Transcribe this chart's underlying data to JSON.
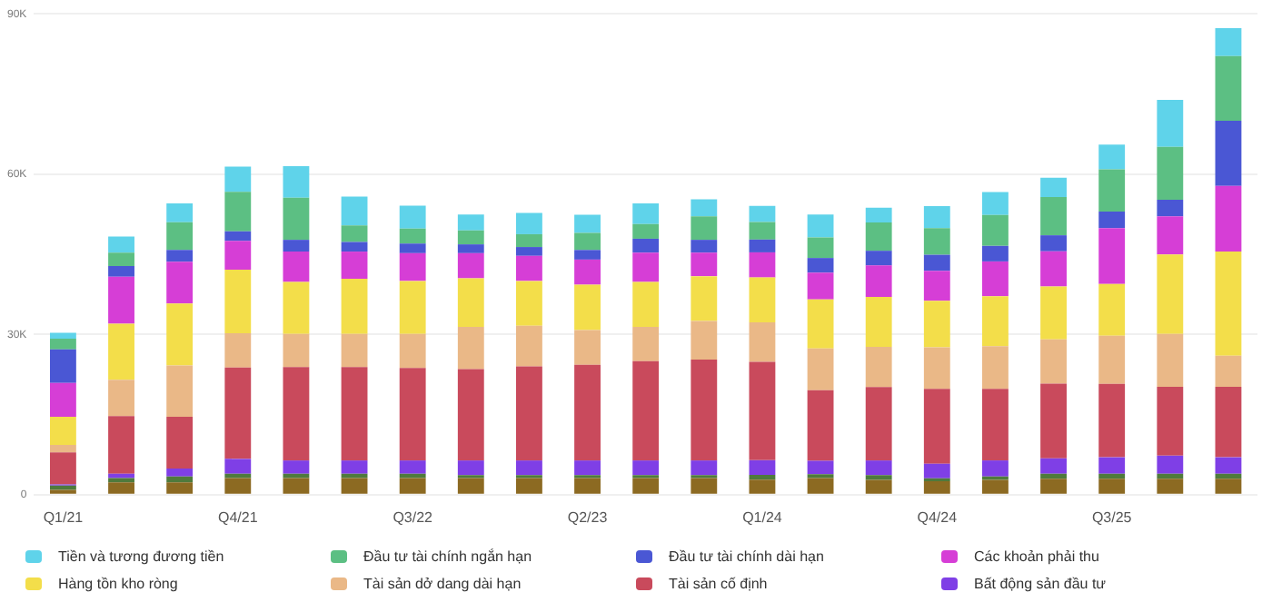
{
  "chart_data": {
    "type": "bar",
    "stacked": true,
    "categories": [
      "Q1/21",
      null,
      null,
      "Q4/21",
      null,
      null,
      "Q3/22",
      null,
      null,
      "Q2/23",
      null,
      null,
      "Q1/24",
      null,
      null,
      "Q4/24",
      null,
      null,
      "Q3/25",
      null,
      null
    ],
    "series": [
      {
        "color": "#8c6a22",
        "values": [
          900,
          2300,
          2300,
          3100,
          3100,
          3100,
          3100,
          3100,
          3100,
          3100,
          3100,
          3100,
          2800,
          3100,
          2750,
          2500,
          2750,
          3000,
          3000,
          3000,
          3000
        ]
      },
      {
        "color": "#4f7a3c",
        "values": [
          800,
          800,
          1100,
          800,
          800,
          800,
          800,
          550,
          550,
          550,
          550,
          550,
          900,
          750,
          900,
          550,
          660,
          900,
          900,
          900,
          900
        ]
      },
      {
        "name": "Bất động sản đầu tư",
        "color": "#7f3fe6",
        "values": [
          200,
          800,
          1500,
          2800,
          2500,
          2500,
          2500,
          2750,
          2750,
          2750,
          2750,
          2750,
          2750,
          2500,
          2750,
          2750,
          3000,
          2900,
          3100,
          3400,
          3100
        ]
      },
      {
        "name": "Tài sản cố định",
        "color": "#c94a5c",
        "values": [
          6000,
          10800,
          9700,
          17100,
          17500,
          17500,
          17300,
          17100,
          17600,
          17900,
          18600,
          18900,
          18400,
          13200,
          13750,
          14000,
          13400,
          14000,
          13750,
          12900,
          13200
        ]
      },
      {
        "name": "Tài sản dở dang dài hạn",
        "color": "#eab887",
        "values": [
          1400,
          6800,
          9600,
          6400,
          6200,
          6200,
          6400,
          7900,
          7600,
          6500,
          6400,
          7200,
          7400,
          7800,
          7500,
          7800,
          8000,
          8250,
          9000,
          9900,
          5800
        ]
      },
      {
        "name": "Hàng tồn kho ròng",
        "color": "#f3de4a",
        "values": [
          5300,
          10500,
          11600,
          11900,
          9700,
          10300,
          9900,
          9100,
          8400,
          8500,
          8400,
          8400,
          8400,
          9200,
          9350,
          8700,
          9350,
          9900,
          9700,
          14850,
          19500
        ]
      },
      {
        "name": "Các khoản phải thu",
        "color": "#d63ed6",
        "values": [
          6300,
          8800,
          7800,
          5400,
          5700,
          5100,
          5200,
          4700,
          4700,
          4700,
          5500,
          4400,
          4700,
          5000,
          5900,
          5600,
          6500,
          6600,
          10450,
          7150,
          12300
        ]
      },
      {
        "name": "Đầu tư tài chính dài hạn",
        "color": "#4a57d4",
        "values": [
          6300,
          2000,
          2200,
          1800,
          2200,
          1800,
          1800,
          1650,
          1650,
          1800,
          2600,
          2400,
          2400,
          2750,
          2750,
          3000,
          2900,
          3000,
          3100,
          3100,
          12200
        ]
      },
      {
        "name": "Đầu tư tài chính ngắn hạn",
        "color": "#5cbf83",
        "values": [
          2000,
          2500,
          5200,
          7400,
          7900,
          3100,
          2800,
          2600,
          2400,
          3200,
          2750,
          4400,
          3300,
          3850,
          5300,
          5000,
          5800,
          7150,
          7900,
          9900,
          12100
        ]
      },
      {
        "name": "Tiền và tương đương tiền",
        "color": "#5fd3ea",
        "values": [
          1100,
          3000,
          3500,
          4700,
          5900,
          5400,
          4300,
          3000,
          4000,
          3400,
          3850,
          3200,
          3000,
          4300,
          2750,
          4100,
          4300,
          3600,
          4600,
          8800,
          5200
        ]
      }
    ],
    "ylim": [
      0,
      90000
    ],
    "yticks": [
      {
        "value": 0,
        "label": "0"
      },
      {
        "value": 30000,
        "label": "30K"
      },
      {
        "value": 60000,
        "label": "60K"
      },
      {
        "value": 90000,
        "label": "90K"
      }
    ],
    "grid": "y",
    "legend": "bottom"
  }
}
